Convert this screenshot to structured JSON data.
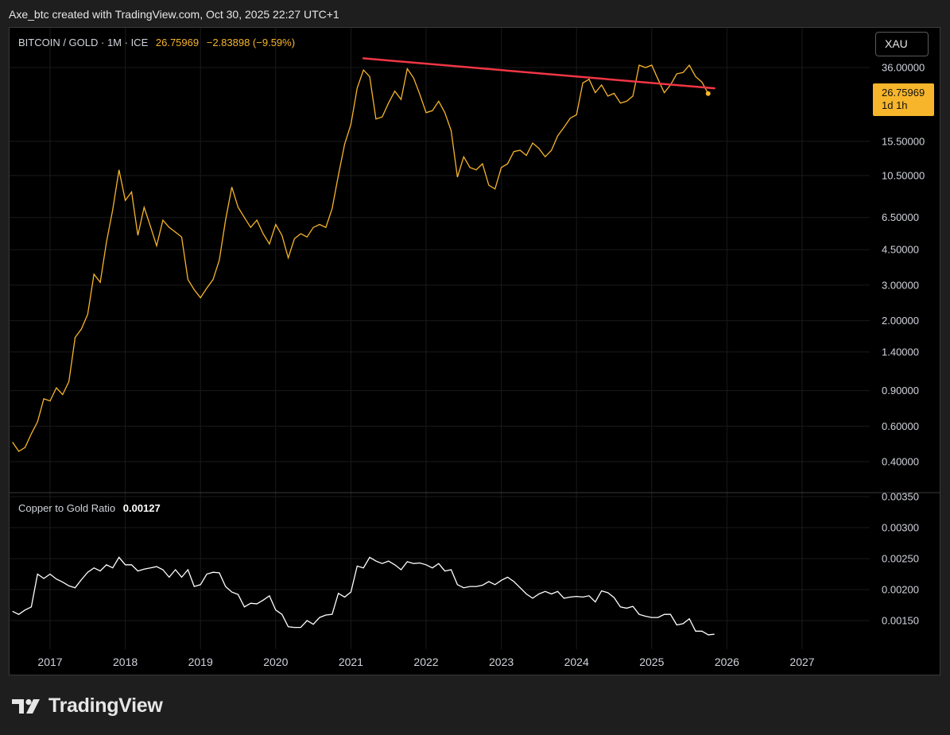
{
  "header": {
    "text": "Axe_btc created with TradingView.com, Oct 30, 2025 22:27 UTC+1"
  },
  "legend_main": {
    "symbol": "BITCOIN / GOLD · 1M · ICE",
    "value": "26.75969",
    "change": "−2.83898 (−9.59%)"
  },
  "legend_sub": {
    "name": "Copper to Gold Ratio",
    "value": "0.00127"
  },
  "currency_button": "XAU",
  "price_tag": {
    "value": "26.75969",
    "countdown": "1d 1h"
  },
  "brand": "TradingView",
  "colors": {
    "price_line": "#f7b52b",
    "trend_line": "#f23645",
    "ratio_line": "#ffffff",
    "background": "#000000",
    "grid": "#1a1a1a"
  },
  "chart_data": [
    {
      "type": "line",
      "scale": "log",
      "x_axis": [
        "2017",
        "2018",
        "2019",
        "2020",
        "2021",
        "2022",
        "2023",
        "2024",
        "2025",
        "2026",
        "2027"
      ],
      "y_ticks": [
        "36.00000",
        "15.50000",
        "10.50000",
        "6.50000",
        "4.50000",
        "3.00000",
        "2.00000",
        "1.40000",
        "0.90000",
        "0.60000",
        "0.40000"
      ],
      "series": [
        {
          "points": [
            [
              "2016-07",
              0.5
            ],
            [
              "2016-08",
              0.45
            ],
            [
              "2016-09",
              0.47
            ],
            [
              "2016-10",
              0.55
            ],
            [
              "2016-11",
              0.63
            ],
            [
              "2016-12",
              0.82
            ],
            [
              "2017-01",
              0.8
            ],
            [
              "2017-02",
              0.93
            ],
            [
              "2017-03",
              0.86
            ],
            [
              "2017-04",
              1.0
            ],
            [
              "2017-05",
              1.65
            ],
            [
              "2017-06",
              1.82
            ],
            [
              "2017-07",
              2.15
            ],
            [
              "2017-08",
              3.4
            ],
            [
              "2017-09",
              3.1
            ],
            [
              "2017-10",
              4.9
            ],
            [
              "2017-11",
              7.1
            ],
            [
              "2017-12",
              11.2
            ],
            [
              "2018-01",
              7.9
            ],
            [
              "2018-02",
              8.7
            ],
            [
              "2018-03",
              5.3
            ],
            [
              "2018-04",
              7.3
            ],
            [
              "2018-05",
              5.9
            ],
            [
              "2018-06",
              4.7
            ],
            [
              "2018-07",
              6.3
            ],
            [
              "2018-08",
              5.8
            ],
            [
              "2018-09",
              5.5
            ],
            [
              "2018-10",
              5.2
            ],
            [
              "2018-11",
              3.2
            ],
            [
              "2018-12",
              2.85
            ],
            [
              "2019-01",
              2.6
            ],
            [
              "2019-02",
              2.9
            ],
            [
              "2019-03",
              3.2
            ],
            [
              "2019-04",
              4.0
            ],
            [
              "2019-05",
              6.3
            ],
            [
              "2019-06",
              9.2
            ],
            [
              "2019-07",
              7.3
            ],
            [
              "2019-08",
              6.5
            ],
            [
              "2019-09",
              5.8
            ],
            [
              "2019-10",
              6.3
            ],
            [
              "2019-11",
              5.4
            ],
            [
              "2019-12",
              4.8
            ],
            [
              "2020-01",
              6.0
            ],
            [
              "2020-02",
              5.3
            ],
            [
              "2020-03",
              4.1
            ],
            [
              "2020-04",
              5.1
            ],
            [
              "2020-05",
              5.4
            ],
            [
              "2020-06",
              5.2
            ],
            [
              "2020-07",
              5.8
            ],
            [
              "2020-08",
              6.0
            ],
            [
              "2020-09",
              5.8
            ],
            [
              "2020-10",
              7.2
            ],
            [
              "2020-11",
              10.5
            ],
            [
              "2020-12",
              15.0
            ],
            [
              "2021-01",
              18.8
            ],
            [
              "2021-02",
              28.5
            ],
            [
              "2021-03",
              35.0
            ],
            [
              "2021-04",
              32.5
            ],
            [
              "2021-05",
              20.0
            ],
            [
              "2021-06",
              20.5
            ],
            [
              "2021-07",
              24.0
            ],
            [
              "2021-08",
              27.5
            ],
            [
              "2021-09",
              25.0
            ],
            [
              "2021-10",
              35.5
            ],
            [
              "2021-11",
              32.0
            ],
            [
              "2021-12",
              26.5
            ],
            [
              "2022-01",
              21.5
            ],
            [
              "2022-02",
              22.0
            ],
            [
              "2022-03",
              24.5
            ],
            [
              "2022-04",
              21.5
            ],
            [
              "2022-05",
              17.5
            ],
            [
              "2022-06",
              10.3
            ],
            [
              "2022-07",
              13.0
            ],
            [
              "2022-08",
              11.5
            ],
            [
              "2022-09",
              11.2
            ],
            [
              "2022-10",
              12.0
            ],
            [
              "2022-11",
              9.4
            ],
            [
              "2022-12",
              9.0
            ],
            [
              "2023-01",
              11.5
            ],
            [
              "2023-02",
              12.0
            ],
            [
              "2023-03",
              13.8
            ],
            [
              "2023-04",
              14.0
            ],
            [
              "2023-05",
              13.2
            ],
            [
              "2023-06",
              15.2
            ],
            [
              "2023-07",
              14.3
            ],
            [
              "2023-08",
              13.0
            ],
            [
              "2023-09",
              14.0
            ],
            [
              "2023-10",
              16.5
            ],
            [
              "2023-11",
              18.2
            ],
            [
              "2023-12",
              20.2
            ],
            [
              "2024-01",
              21.0
            ],
            [
              "2024-02",
              30.2
            ],
            [
              "2024-03",
              31.5
            ],
            [
              "2024-04",
              27.0
            ],
            [
              "2024-05",
              29.5
            ],
            [
              "2024-06",
              26.0
            ],
            [
              "2024-07",
              26.8
            ],
            [
              "2024-08",
              24.0
            ],
            [
              "2024-09",
              24.5
            ],
            [
              "2024-10",
              26.0
            ],
            [
              "2024-11",
              37.0
            ],
            [
              "2024-12",
              36.0
            ],
            [
              "2025-01",
              37.0
            ],
            [
              "2025-02",
              31.5
            ],
            [
              "2025-03",
              27.0
            ],
            [
              "2025-04",
              29.5
            ],
            [
              "2025-05",
              33.5
            ],
            [
              "2025-06",
              34.0
            ],
            [
              "2025-07",
              37.0
            ],
            [
              "2025-08",
              32.5
            ],
            [
              "2025-09",
              30.5
            ],
            [
              "2025-10",
              26.76
            ]
          ]
        },
        {
          "type": "trendline",
          "points": [
            [
              "2021-03",
              40.0
            ],
            [
              "2025-11",
              28.4
            ]
          ]
        }
      ]
    },
    {
      "type": "line",
      "title": "Copper to Gold Ratio",
      "y_ticks": [
        "0.00350",
        "0.00300",
        "0.00250",
        "0.00200",
        "0.00150"
      ],
      "series": [
        {
          "points": [
            [
              "2016-07",
              0.00165
            ],
            [
              "2016-08",
              0.0016
            ],
            [
              "2016-09",
              0.00167
            ],
            [
              "2016-10",
              0.00172
            ],
            [
              "2016-11",
              0.00225
            ],
            [
              "2016-12",
              0.00218
            ],
            [
              "2017-01",
              0.00225
            ],
            [
              "2017-02",
              0.00217
            ],
            [
              "2017-03",
              0.00212
            ],
            [
              "2017-04",
              0.00206
            ],
            [
              "2017-05",
              0.00203
            ],
            [
              "2017-06",
              0.00216
            ],
            [
              "2017-07",
              0.00228
            ],
            [
              "2017-08",
              0.00235
            ],
            [
              "2017-09",
              0.0023
            ],
            [
              "2017-10",
              0.0024
            ],
            [
              "2017-11",
              0.00235
            ],
            [
              "2017-12",
              0.00252
            ],
            [
              "2018-01",
              0.0024
            ],
            [
              "2018-02",
              0.0024
            ],
            [
              "2018-03",
              0.0023
            ],
            [
              "2018-04",
              0.00233
            ],
            [
              "2018-05",
              0.00235
            ],
            [
              "2018-06",
              0.00237
            ],
            [
              "2018-07",
              0.00232
            ],
            [
              "2018-08",
              0.0022
            ],
            [
              "2018-09",
              0.00232
            ],
            [
              "2018-10",
              0.0022
            ],
            [
              "2018-11",
              0.00232
            ],
            [
              "2018-12",
              0.00205
            ],
            [
              "2019-01",
              0.00208
            ],
            [
              "2019-02",
              0.00225
            ],
            [
              "2019-03",
              0.00228
            ],
            [
              "2019-04",
              0.00227
            ],
            [
              "2019-05",
              0.00205
            ],
            [
              "2019-06",
              0.00196
            ],
            [
              "2019-07",
              0.00192
            ],
            [
              "2019-08",
              0.00172
            ],
            [
              "2019-09",
              0.00178
            ],
            [
              "2019-10",
              0.00177
            ],
            [
              "2019-11",
              0.00183
            ],
            [
              "2019-12",
              0.0019
            ],
            [
              "2020-01",
              0.00167
            ],
            [
              "2020-02",
              0.0016
            ],
            [
              "2020-03",
              0.0014
            ],
            [
              "2020-04",
              0.00139
            ],
            [
              "2020-05",
              0.00139
            ],
            [
              "2020-06",
              0.0015
            ],
            [
              "2020-07",
              0.00144
            ],
            [
              "2020-08",
              0.00155
            ],
            [
              "2020-09",
              0.00159
            ],
            [
              "2020-10",
              0.0016
            ],
            [
              "2020-11",
              0.00194
            ],
            [
              "2020-12",
              0.00188
            ],
            [
              "2021-01",
              0.00196
            ],
            [
              "2021-02",
              0.00238
            ],
            [
              "2021-03",
              0.00235
            ],
            [
              "2021-04",
              0.00252
            ],
            [
              "2021-05",
              0.00246
            ],
            [
              "2021-06",
              0.00242
            ],
            [
              "2021-07",
              0.00246
            ],
            [
              "2021-08",
              0.0024
            ],
            [
              "2021-09",
              0.00232
            ],
            [
              "2021-10",
              0.00245
            ],
            [
              "2021-11",
              0.00242
            ],
            [
              "2021-12",
              0.00243
            ],
            [
              "2022-01",
              0.0024
            ],
            [
              "2022-02",
              0.00235
            ],
            [
              "2022-03",
              0.00242
            ],
            [
              "2022-04",
              0.0023
            ],
            [
              "2022-05",
              0.00232
            ],
            [
              "2022-06",
              0.00208
            ],
            [
              "2022-07",
              0.00203
            ],
            [
              "2022-08",
              0.00205
            ],
            [
              "2022-09",
              0.00205
            ],
            [
              "2022-10",
              0.00207
            ],
            [
              "2022-11",
              0.00213
            ],
            [
              "2022-12",
              0.00208
            ],
            [
              "2023-01",
              0.00215
            ],
            [
              "2023-02",
              0.0022
            ],
            [
              "2023-03",
              0.00213
            ],
            [
              "2023-04",
              0.00203
            ],
            [
              "2023-05",
              0.00193
            ],
            [
              "2023-06",
              0.00186
            ],
            [
              "2023-07",
              0.00193
            ],
            [
              "2023-08",
              0.00197
            ],
            [
              "2023-09",
              0.00193
            ],
            [
              "2023-10",
              0.00197
            ],
            [
              "2023-11",
              0.00186
            ],
            [
              "2023-12",
              0.00188
            ],
            [
              "2024-01",
              0.00189
            ],
            [
              "2024-02",
              0.00188
            ],
            [
              "2024-03",
              0.0019
            ],
            [
              "2024-04",
              0.0018
            ],
            [
              "2024-05",
              0.00198
            ],
            [
              "2024-06",
              0.00195
            ],
            [
              "2024-07",
              0.00187
            ],
            [
              "2024-08",
              0.00172
            ],
            [
              "2024-09",
              0.0017
            ],
            [
              "2024-10",
              0.00173
            ],
            [
              "2024-11",
              0.0016
            ],
            [
              "2024-12",
              0.00157
            ],
            [
              "2025-01",
              0.00155
            ],
            [
              "2025-02",
              0.00155
            ],
            [
              "2025-03",
              0.0016
            ],
            [
              "2025-04",
              0.0016
            ],
            [
              "2025-05",
              0.00143
            ],
            [
              "2025-06",
              0.00145
            ],
            [
              "2025-07",
              0.00153
            ],
            [
              "2025-08",
              0.00133
            ],
            [
              "2025-09",
              0.00133
            ],
            [
              "2025-10",
              0.00127
            ],
            [
              "2025-11",
              0.00128
            ]
          ]
        }
      ]
    }
  ]
}
